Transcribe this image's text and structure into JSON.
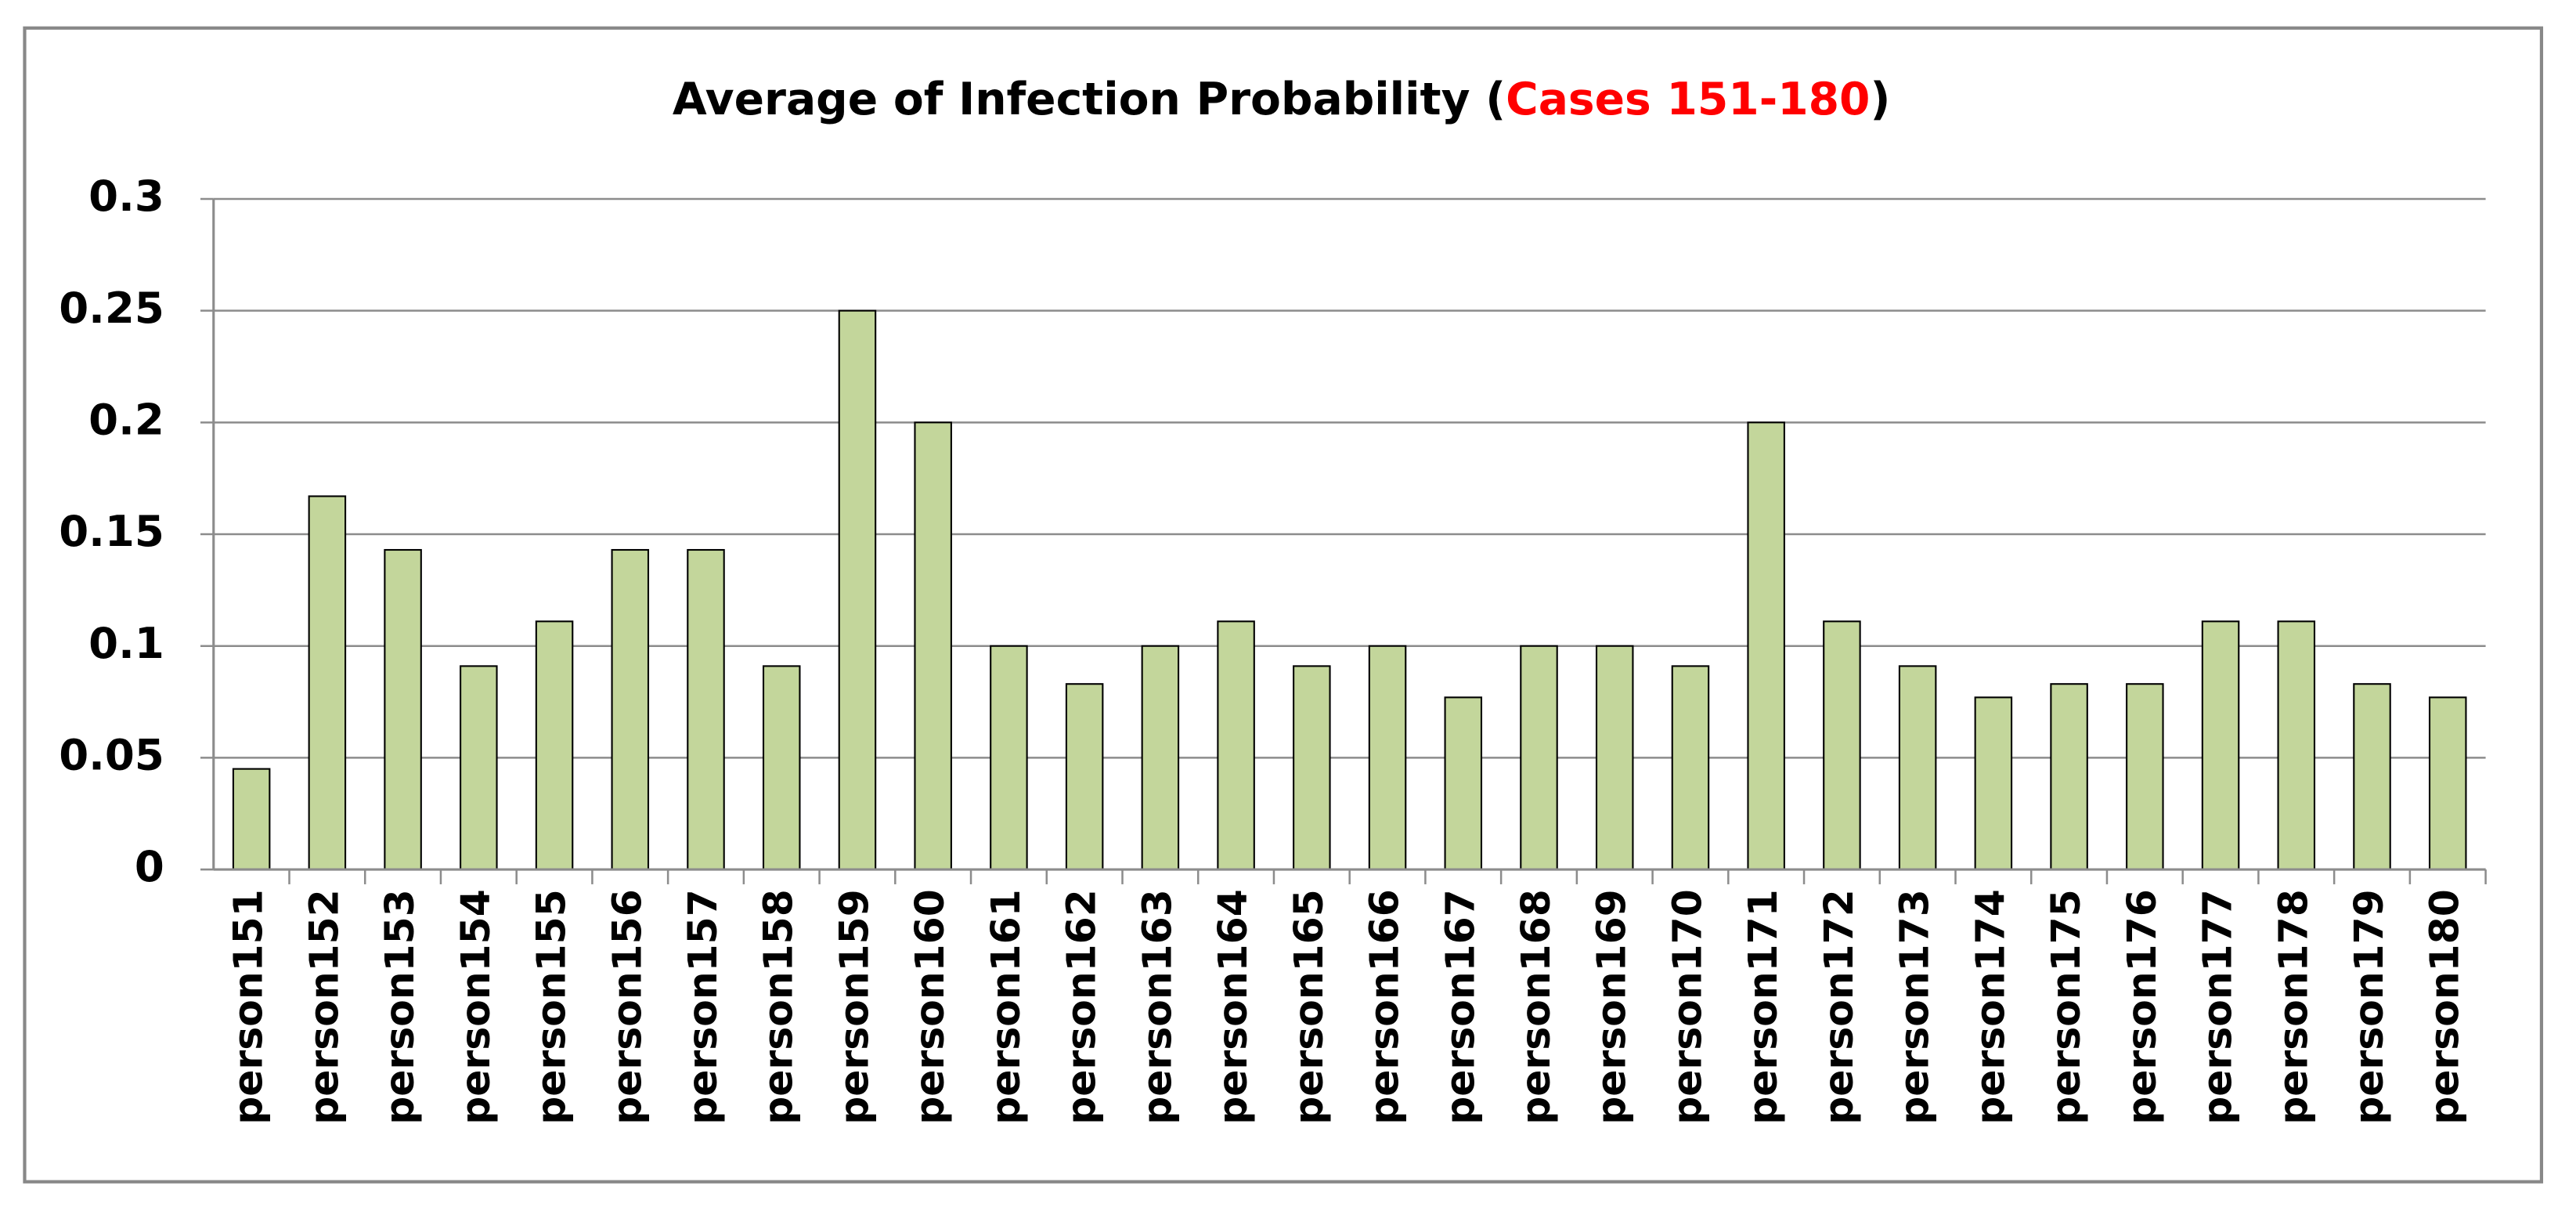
{
  "chart_data": {
    "type": "bar",
    "title": {
      "prefix": "Average of Infection Probability (",
      "highlight": "Cases 151-180",
      "suffix": ")"
    },
    "highlight_color": "#ff0000",
    "categories": [
      "person151",
      "person152",
      "person153",
      "person154",
      "person155",
      "person156",
      "person157",
      "person158",
      "person159",
      "person160",
      "person161",
      "person162",
      "person163",
      "person164",
      "person165",
      "person166",
      "person167",
      "person168",
      "person169",
      "person170",
      "person171",
      "person172",
      "person173",
      "person174",
      "person175",
      "person176",
      "person177",
      "person178",
      "person179",
      "person180"
    ],
    "values": [
      0.045,
      0.167,
      0.143,
      0.091,
      0.111,
      0.143,
      0.143,
      0.091,
      0.25,
      0.2,
      0.1,
      0.083,
      0.1,
      0.111,
      0.091,
      0.1,
      0.077,
      0.1,
      0.1,
      0.091,
      0.2,
      0.111,
      0.091,
      0.077,
      0.083,
      0.083,
      0.111,
      0.111,
      0.083,
      0.077
    ],
    "color": "#c3d69b",
    "ylim": [
      0,
      0.3
    ],
    "yticks": [
      0,
      0.05,
      0.1,
      0.15,
      0.2,
      0.25,
      0.3
    ],
    "grid": true
  }
}
